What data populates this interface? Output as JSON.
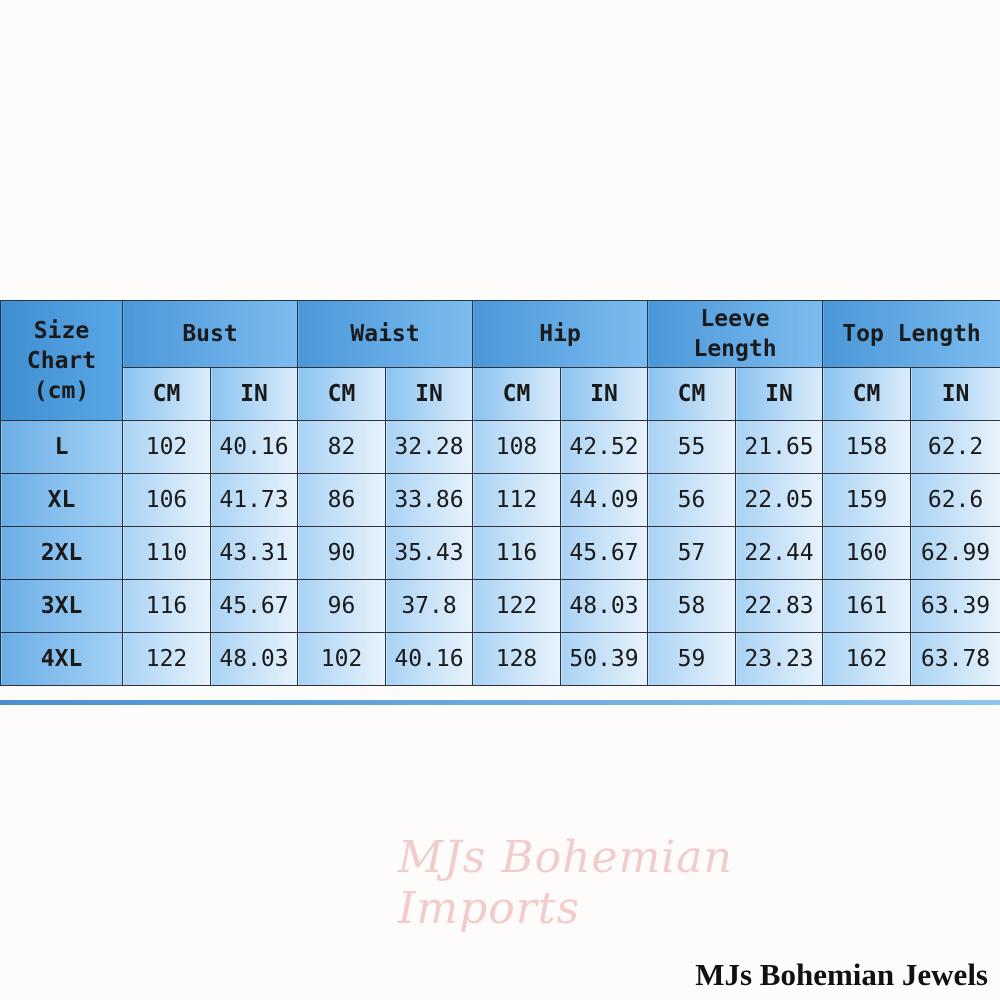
{
  "table": {
    "corner_label": [
      "Size",
      "Chart",
      "(cm)"
    ],
    "groups": [
      {
        "label": [
          "Bust"
        ]
      },
      {
        "label": [
          "Waist"
        ]
      },
      {
        "label": [
          "Hip"
        ]
      },
      {
        "label": [
          "Leeve",
          "Length"
        ]
      },
      {
        "label": [
          "Top Length"
        ]
      }
    ],
    "unit_labels": [
      "CM",
      "IN"
    ],
    "rows": [
      {
        "size": "L",
        "values": [
          "102",
          "40.16",
          "82",
          "32.28",
          "108",
          "42.52",
          "55",
          "21.65",
          "158",
          "62.2"
        ]
      },
      {
        "size": "XL",
        "values": [
          "106",
          "41.73",
          "86",
          "33.86",
          "112",
          "44.09",
          "56",
          "22.05",
          "159",
          "62.6"
        ]
      },
      {
        "size": "2XL",
        "values": [
          "110",
          "43.31",
          "90",
          "35.43",
          "116",
          "45.67",
          "57",
          "22.44",
          "160",
          "62.99"
        ]
      },
      {
        "size": "3XL",
        "values": [
          "116",
          "45.67",
          "96",
          "37.8",
          "122",
          "48.03",
          "58",
          "22.83",
          "161",
          "63.39"
        ]
      },
      {
        "size": "4XL",
        "values": [
          "122",
          "48.03",
          "102",
          "40.16",
          "128",
          "50.39",
          "59",
          "23.23",
          "162",
          "63.78"
        ]
      }
    ]
  },
  "watermark": "MJs Bohemian Imports",
  "brand": "MJs Bohemian Jewels"
}
